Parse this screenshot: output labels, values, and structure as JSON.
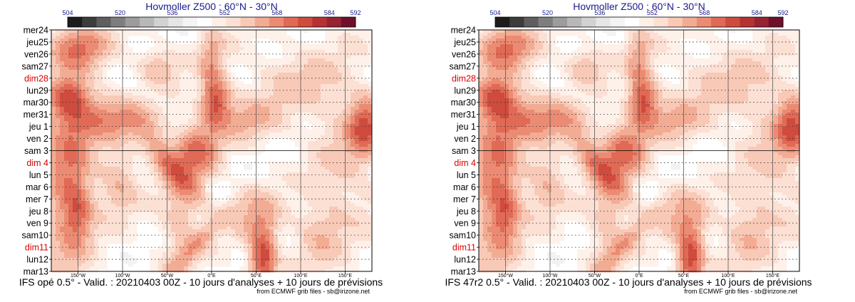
{
  "chart_data": [
    {
      "type": "heatmap",
      "title": "Hovmoller Z500 : 60°N - 30°N",
      "model_caption": "IFS opé 0.5° - Valid. : 20210403 00Z - 10 jours d'analyses + 10 jours de prévisions",
      "credit": "from ECMWF grib files - sb@irizone.net",
      "colorbar_labels": [
        "504",
        "520",
        "536",
        "552",
        "568",
        "584",
        "592"
      ],
      "xtick_labels": [
        "150°W",
        "100°W",
        "50°W",
        "0°E",
        "50°E",
        "100°E",
        "150°E"
      ],
      "y_labels": [
        "mer24",
        "jeu25",
        "ven26",
        "sam27",
        "dim28",
        "lun29",
        "mar30",
        "mer31",
        "jeu 1",
        "ven 2",
        "sam 3",
        "dim 4",
        "lun 5",
        "mar 6",
        "mer 7",
        "jeu 8",
        "ven 9",
        "sam10",
        "dim11",
        "lun12",
        "mar13"
      ],
      "red_labels": [
        "dim28",
        "dim 4",
        "dim11"
      ],
      "analysis_forecast_split": "sam 3",
      "z_range": [
        504,
        592
      ]
    },
    {
      "type": "heatmap",
      "title": "Hovmoller Z500 : 60°N - 30°N",
      "model_caption": "IFS 47r2 0.5° - Valid. : 20210403 00Z - 10 jours d'analyses + 10 jours de prévisions",
      "credit": "from ECMWF grib files - sb@irizone.net",
      "colorbar_labels": [
        "504",
        "520",
        "536",
        "552",
        "568",
        "584",
        "592"
      ],
      "xtick_labels": [
        "150°W",
        "100°W",
        "50°W",
        "0°E",
        "50°E",
        "100°E",
        "150°E"
      ],
      "y_labels": [
        "mer24",
        "jeu25",
        "ven26",
        "sam27",
        "dim28",
        "lun29",
        "mar30",
        "mer31",
        "jeu 1",
        "ven 2",
        "sam 3",
        "dim 4",
        "lun 5",
        "mar 6",
        "mer 7",
        "jeu 8",
        "ven 9",
        "sam10",
        "dim11",
        "lun12",
        "mar13"
      ],
      "red_labels": [
        "dim28",
        "dim 4",
        "dim11"
      ],
      "analysis_forecast_split": "sam 3",
      "z_range": [
        504,
        592
      ]
    }
  ],
  "colors": {
    "colorbar": [
      "#1c1c1c",
      "#3c3c3c",
      "#5e5e5e",
      "#7e7e7e",
      "#9c9c9c",
      "#b8b8b8",
      "#d2d2d2",
      "#e6e6e6",
      "#f4f4f4",
      "#ffffff",
      "#fdefe8",
      "#fce0d4",
      "#f8c9b6",
      "#f3ac94",
      "#ec8b73",
      "#e06a55",
      "#cf4b3e",
      "#b53232",
      "#962232",
      "#700f2a"
    ],
    "title": "#1a1a8c",
    "weekend": "#dd0000",
    "text": "#000000",
    "background_field": "#fdf1ea"
  }
}
